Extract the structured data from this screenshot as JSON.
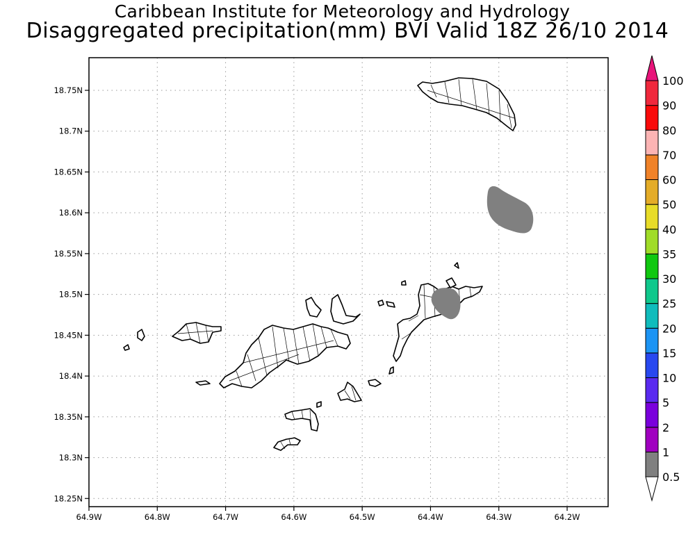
{
  "header": {
    "title": "Caribbean Institute for Meteorology and Hydrology",
    "subtitle": "Disaggregated precipitation(mm) BVI Valid 18Z 26/10 2014"
  },
  "map": {
    "lon_range": [
      -64.9,
      -64.14
    ],
    "lat_range": [
      18.24,
      18.79
    ],
    "lon_ticks": [
      {
        "value": -64.9,
        "label": "64.9W"
      },
      {
        "value": -64.8,
        "label": "64.8W"
      },
      {
        "value": -64.7,
        "label": "64.7W"
      },
      {
        "value": -64.6,
        "label": "64.6W"
      },
      {
        "value": -64.5,
        "label": "64.5W"
      },
      {
        "value": -64.4,
        "label": "64.4W"
      },
      {
        "value": -64.3,
        "label": "64.3W"
      },
      {
        "value": -64.2,
        "label": "64.2W"
      }
    ],
    "lat_ticks": [
      {
        "value": 18.25,
        "label": "18.25N"
      },
      {
        "value": 18.3,
        "label": "18.3N"
      },
      {
        "value": 18.35,
        "label": "18.35N"
      },
      {
        "value": 18.4,
        "label": "18.4N"
      },
      {
        "value": 18.45,
        "label": "18.45N"
      },
      {
        "value": 18.5,
        "label": "18.5N"
      },
      {
        "value": 18.55,
        "label": "18.55N"
      },
      {
        "value": 18.6,
        "label": "18.6N"
      },
      {
        "value": 18.65,
        "label": "18.65N"
      },
      {
        "value": 18.7,
        "label": "18.7N"
      },
      {
        "value": 18.75,
        "label": "18.75N"
      }
    ],
    "grid": "dotted",
    "coastline_color": "#000000",
    "land_fill": "#ffffff",
    "precip_fill": "#808080",
    "precip_bin": "0.5-1 mm"
  },
  "legend": {
    "position": "right",
    "bins": [
      {
        "label": "0.5",
        "color": "#ffffff"
      },
      {
        "label": "1",
        "color": "#808080"
      },
      {
        "label": "2",
        "color": "#a000c0"
      },
      {
        "label": "5",
        "color": "#7a00dc"
      },
      {
        "label": "10",
        "color": "#5a2af0"
      },
      {
        "label": "15",
        "color": "#2848f0"
      },
      {
        "label": "20",
        "color": "#1c94f4"
      },
      {
        "label": "25",
        "color": "#10bcbc"
      },
      {
        "label": "30",
        "color": "#0fc88c"
      },
      {
        "label": "35",
        "color": "#10c810"
      },
      {
        "label": "40",
        "color": "#a0dc28"
      },
      {
        "label": "50",
        "color": "#e8dc28"
      },
      {
        "label": "60",
        "color": "#e4ac28"
      },
      {
        "label": "70",
        "color": "#f08228"
      },
      {
        "label": "80",
        "color": "#fcb4b4"
      },
      {
        "label": "90",
        "color": "#fa0a0a"
      },
      {
        "label": "100",
        "color": "#f0283c"
      }
    ],
    "top_arrow_color": "#e8147a"
  }
}
